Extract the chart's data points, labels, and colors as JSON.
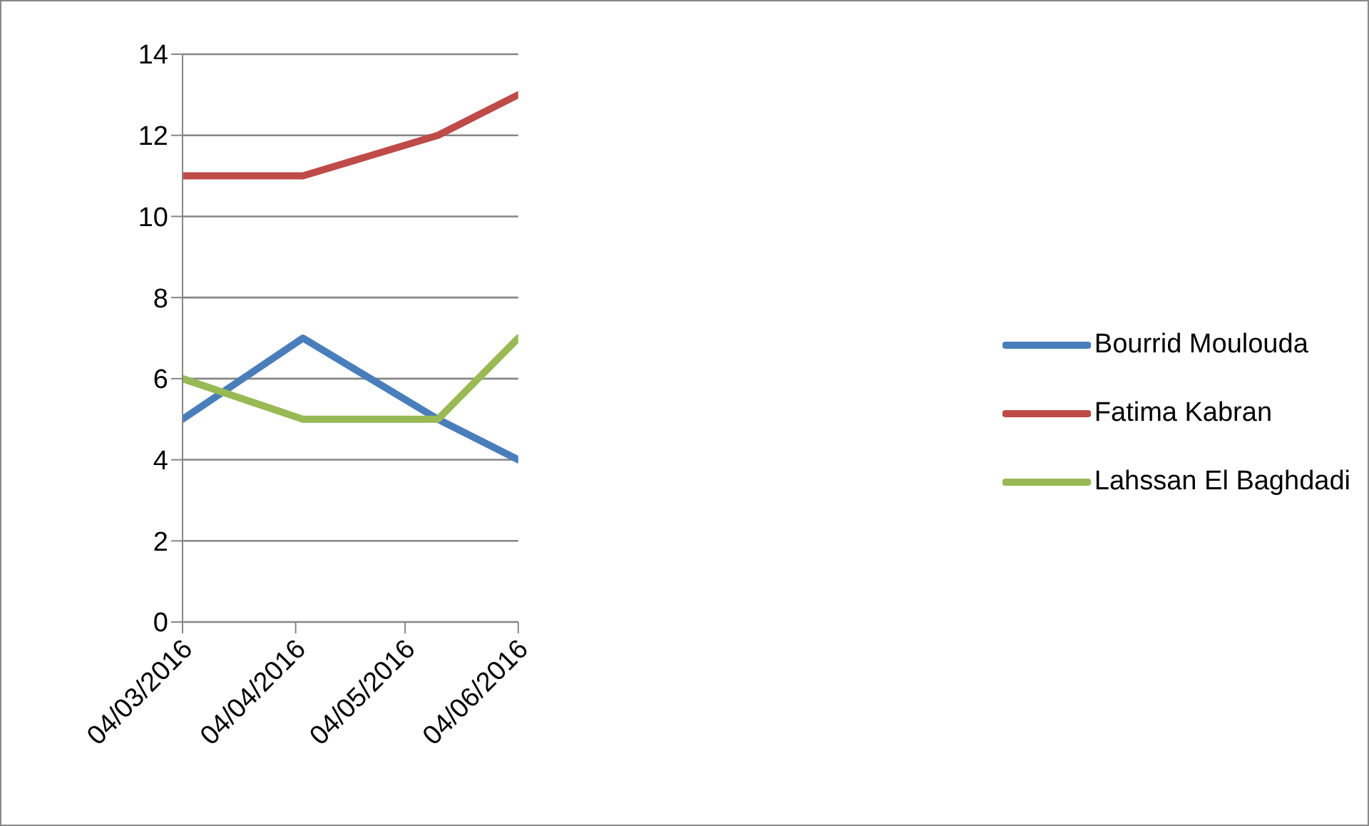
{
  "chart_data": {
    "type": "line",
    "xlim": [
      "2016-03-04",
      "2016-06-04"
    ],
    "xticks": [
      {
        "value": "2016-03-04",
        "label": "04/03/2016"
      },
      {
        "value": "2016-04-04",
        "label": "04/04/2016"
      },
      {
        "value": "2016-05-04",
        "label": "04/05/2016"
      },
      {
        "value": "2016-06-04",
        "label": "04/06/2016"
      }
    ],
    "ylim": [
      0,
      14
    ],
    "yticks": [
      0,
      2,
      4,
      6,
      8,
      10,
      12,
      14
    ],
    "grid": "y",
    "legend": "right",
    "marker": "none",
    "line_style": "solid",
    "series": [
      {
        "name": "Bourrid Moulouda",
        "color": "#4a7ebb",
        "x": [
          "2016-03-04",
          "2016-04-06",
          "2016-05-13",
          "2016-06-04"
        ],
        "values": [
          5,
          7,
          5,
          4
        ]
      },
      {
        "name": "Fatima Kabran",
        "color": "#be4b48",
        "x": [
          "2016-03-04",
          "2016-04-06",
          "2016-05-13",
          "2016-06-04"
        ],
        "values": [
          11,
          11,
          12,
          13
        ]
      },
      {
        "name": "Lahssan El Baghdadi",
        "color": "#98b954",
        "x": [
          "2016-03-04",
          "2016-04-06",
          "2016-05-13",
          "2016-06-04"
        ],
        "values": [
          6,
          5,
          5,
          7
        ]
      }
    ]
  }
}
